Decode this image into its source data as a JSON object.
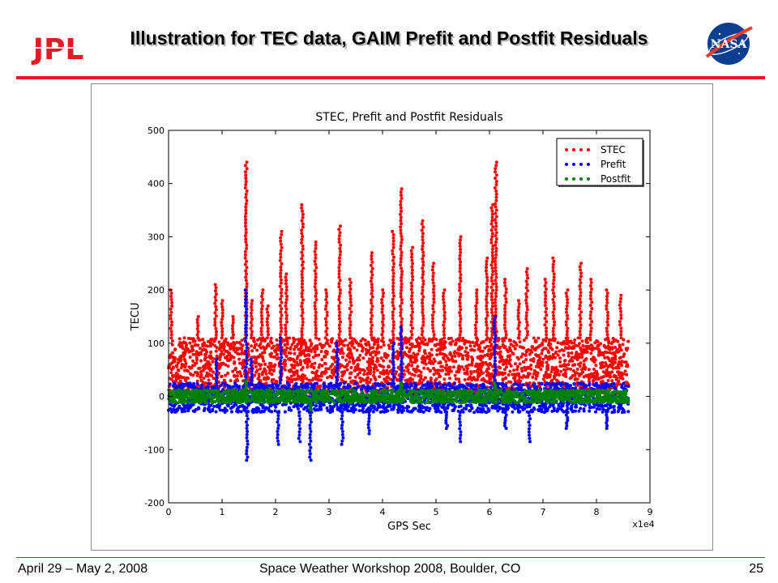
{
  "slide": {
    "title": "Illustration for TEC data, GAIM Prefit and Postfit Residuals"
  },
  "logos": {
    "left_text": "JPL",
    "right_text": "NASA"
  },
  "footer": {
    "left": "April 29 – May 2, 2008",
    "center": "Space Weather Workshop 2008, Boulder, CO",
    "page": "25"
  },
  "colors": {
    "accent": "#e31b23",
    "stec": "#ff0000",
    "prefit": "#0000ff",
    "postfit": "#008000"
  },
  "chart_data": {
    "type": "scatter",
    "title": "STEC, Prefit and Postfit Residuals",
    "xlabel": "GPS Sec",
    "ylabel": "TECU",
    "x_multiplier_label": "x1e4",
    "xlim": [
      0,
      9
    ],
    "ylim": [
      -200,
      500
    ],
    "xticks": [
      "0",
      "1",
      "2",
      "3",
      "4",
      "5",
      "6",
      "7",
      "8",
      "9"
    ],
    "yticks": [
      "-200",
      "-100",
      "0",
      "100",
      "200",
      "300",
      "400",
      "500"
    ],
    "legend_position": "top-right",
    "grid": false,
    "series": [
      {
        "name": "STEC",
        "color": "#ff0000",
        "band_range": [
          5,
          110
        ],
        "peaks": [
          [
            0.05,
            200
          ],
          [
            0.55,
            150
          ],
          [
            0.88,
            210
          ],
          [
            1.0,
            180
          ],
          [
            1.2,
            150
          ],
          [
            1.45,
            440
          ],
          [
            1.55,
            180
          ],
          [
            1.75,
            200
          ],
          [
            1.85,
            170
          ],
          [
            2.1,
            310
          ],
          [
            2.2,
            230
          ],
          [
            2.5,
            360
          ],
          [
            2.75,
            290
          ],
          [
            2.95,
            200
          ],
          [
            3.2,
            320
          ],
          [
            3.4,
            220
          ],
          [
            3.8,
            270
          ],
          [
            4.0,
            200
          ],
          [
            4.2,
            310
          ],
          [
            4.35,
            390
          ],
          [
            4.55,
            280
          ],
          [
            4.75,
            330
          ],
          [
            4.95,
            250
          ],
          [
            5.15,
            200
          ],
          [
            5.45,
            300
          ],
          [
            5.75,
            200
          ],
          [
            5.95,
            260
          ],
          [
            6.05,
            360
          ],
          [
            6.12,
            440
          ],
          [
            6.3,
            220
          ],
          [
            6.55,
            180
          ],
          [
            6.7,
            240
          ],
          [
            7.05,
            220
          ],
          [
            7.2,
            260
          ],
          [
            7.45,
            200
          ],
          [
            7.7,
            250
          ],
          [
            7.9,
            220
          ],
          [
            8.2,
            200
          ],
          [
            8.45,
            190
          ]
        ]
      },
      {
        "name": "Prefit",
        "color": "#0000ff",
        "band_range": [
          -30,
          25
        ],
        "peaks": [
          [
            0.9,
            70
          ],
          [
            1.45,
            200
          ],
          [
            1.47,
            -120
          ],
          [
            1.55,
            70
          ],
          [
            2.05,
            -90
          ],
          [
            2.1,
            110
          ],
          [
            2.45,
            -85
          ],
          [
            2.65,
            -120
          ],
          [
            3.15,
            100
          ],
          [
            3.25,
            -90
          ],
          [
            3.75,
            -70
          ],
          [
            4.2,
            100
          ],
          [
            4.35,
            130
          ],
          [
            5.2,
            -60
          ],
          [
            5.45,
            -85
          ],
          [
            6.1,
            150
          ],
          [
            6.3,
            -60
          ],
          [
            6.75,
            -85
          ],
          [
            7.45,
            -60
          ],
          [
            8.2,
            -60
          ]
        ]
      },
      {
        "name": "Postfit",
        "color": "#008000",
        "band_range": [
          -12,
          12
        ],
        "peaks": [
          [
            1.45,
            30
          ],
          [
            2.65,
            -25
          ],
          [
            4.35,
            25
          ],
          [
            6.1,
            25
          ]
        ]
      }
    ]
  }
}
